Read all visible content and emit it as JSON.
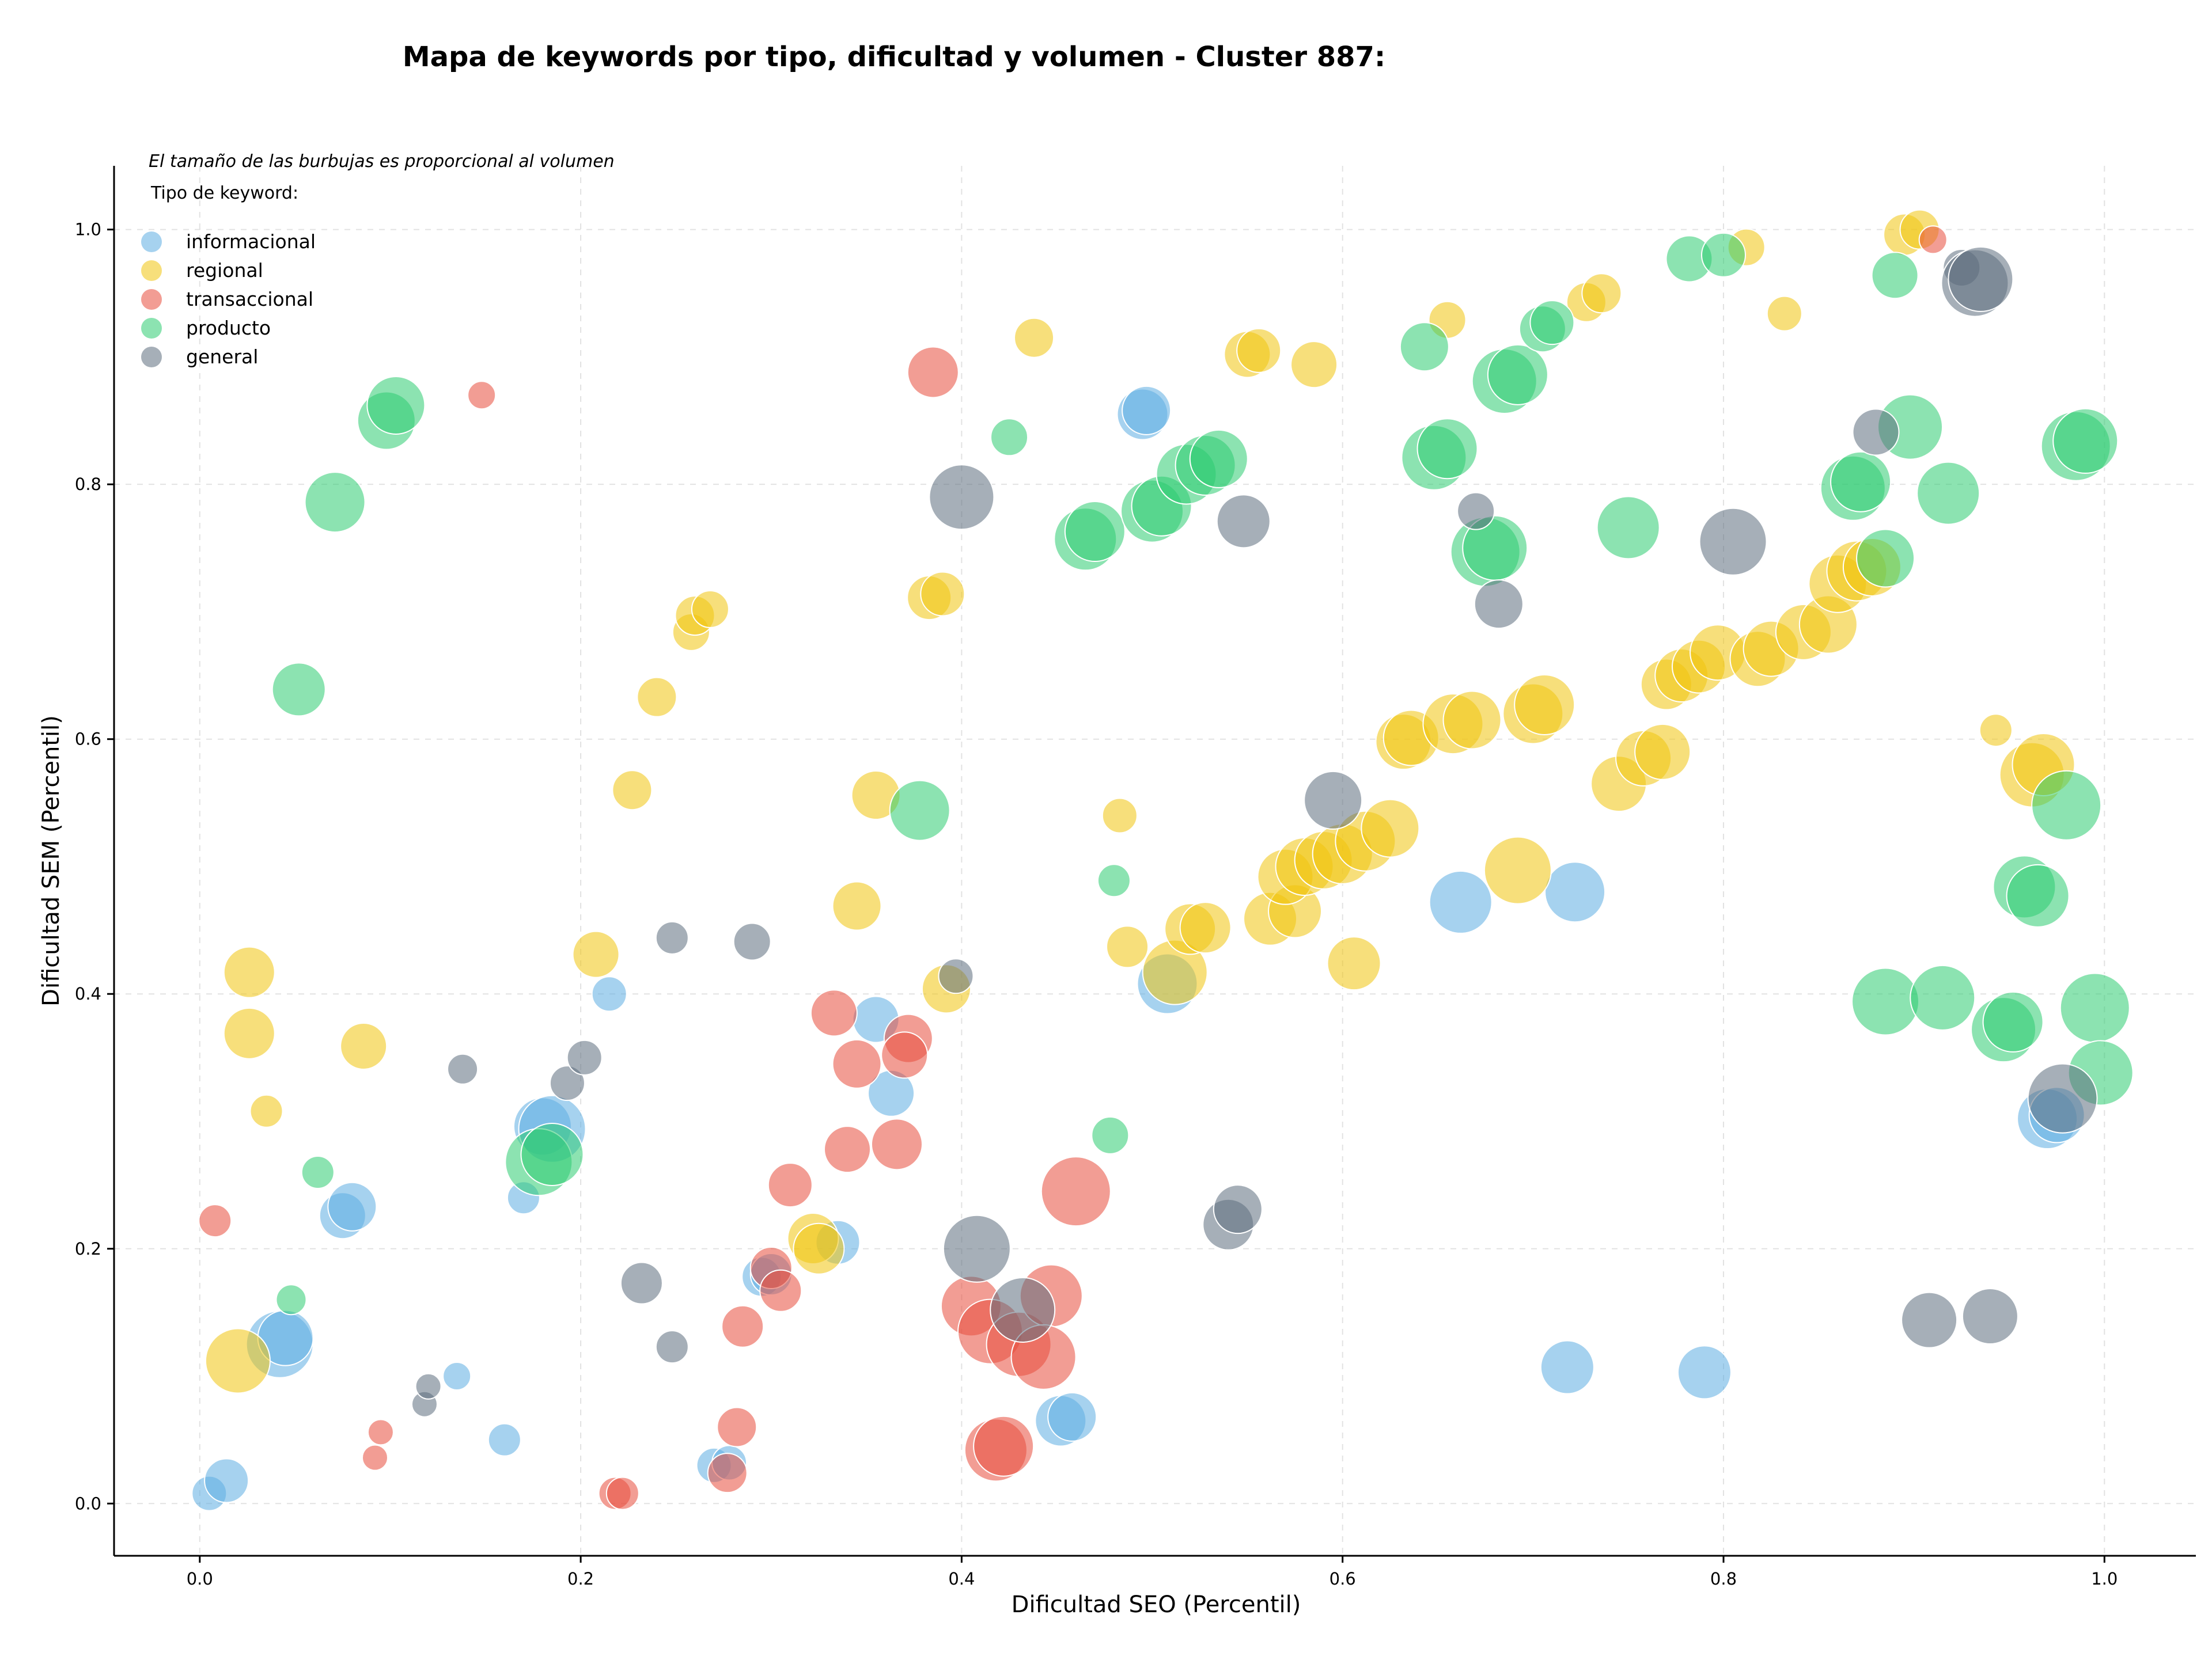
{
  "chart_data": {
    "type": "scatter",
    "title": "Mapa de keywords por tipo, dificultad y volumen - Cluster 887:",
    "xlabel": "Dificultad SEO (Percentil)",
    "ylabel": "Dificultad SEM (Percentil)",
    "note": "El tamaño de las burbujas es proporcional al volumen",
    "legend_title": "Tipo de keyword:",
    "legend_position": "top-left",
    "grid": true,
    "xlim": [
      -0.045,
      1.048
    ],
    "ylim": [
      -0.041,
      1.05
    ],
    "x_ticks": [
      "0.0",
      "0.2",
      "0.4",
      "0.6",
      "0.8",
      "1.0"
    ],
    "y_ticks": [
      "0.0",
      "0.2",
      "0.4",
      "0.6",
      "0.8",
      "1.0"
    ],
    "series": [
      {
        "name": "informacional",
        "color": "#5DADE2",
        "points": [
          [
            0.005,
            0.008,
            30
          ],
          [
            0.014,
            0.018,
            38
          ],
          [
            0.042,
            0.125,
            58
          ],
          [
            0.045,
            0.13,
            48
          ],
          [
            0.075,
            0.226,
            40
          ],
          [
            0.08,
            0.233,
            42
          ],
          [
            0.17,
            0.24,
            28
          ],
          [
            0.18,
            0.296,
            50
          ],
          [
            0.185,
            0.294,
            58
          ],
          [
            0.215,
            0.4,
            30
          ],
          [
            0.16,
            0.05,
            28
          ],
          [
            0.135,
            0.1,
            24
          ],
          [
            0.27,
            0.03,
            30
          ],
          [
            0.278,
            0.032,
            30
          ],
          [
            0.295,
            0.178,
            34
          ],
          [
            0.3,
            0.18,
            36
          ],
          [
            0.335,
            0.205,
            38
          ],
          [
            0.355,
            0.38,
            40
          ],
          [
            0.363,
            0.322,
            40
          ],
          [
            0.452,
            0.065,
            44
          ],
          [
            0.458,
            0.068,
            42
          ],
          [
            0.495,
            0.855,
            44
          ],
          [
            0.497,
            0.858,
            42
          ],
          [
            0.508,
            0.408,
            52
          ],
          [
            0.662,
            0.472,
            54
          ],
          [
            0.722,
            0.48,
            52
          ],
          [
            0.718,
            0.107,
            46
          ],
          [
            0.79,
            0.103,
            46
          ],
          [
            0.97,
            0.302,
            52
          ],
          [
            0.975,
            0.305,
            48
          ]
        ]
      },
      {
        "name": "regional",
        "color": "#F1C40F",
        "points": [
          [
            0.02,
            0.112,
            56
          ],
          [
            0.026,
            0.417,
            44
          ],
          [
            0.026,
            0.369,
            44
          ],
          [
            0.035,
            0.308,
            28
          ],
          [
            0.086,
            0.359,
            40
          ],
          [
            0.208,
            0.431,
            40
          ],
          [
            0.227,
            0.56,
            34
          ],
          [
            0.24,
            0.633,
            34
          ],
          [
            0.258,
            0.684,
            32
          ],
          [
            0.26,
            0.697,
            34
          ],
          [
            0.268,
            0.702,
            32
          ],
          [
            0.322,
            0.208,
            44
          ],
          [
            0.325,
            0.2,
            44
          ],
          [
            0.345,
            0.469,
            42
          ],
          [
            0.355,
            0.556,
            42
          ],
          [
            0.383,
            0.711,
            38
          ],
          [
            0.39,
            0.714,
            38
          ],
          [
            0.392,
            0.404,
            42
          ],
          [
            0.438,
            0.915,
            34
          ],
          [
            0.483,
            0.54,
            30
          ],
          [
            0.487,
            0.437,
            36
          ],
          [
            0.512,
            0.417,
            56
          ],
          [
            0.52,
            0.451,
            44
          ],
          [
            0.528,
            0.452,
            44
          ],
          [
            0.55,
            0.902,
            40
          ],
          [
            0.556,
            0.905,
            38
          ],
          [
            0.585,
            0.894,
            40
          ],
          [
            0.562,
            0.459,
            46
          ],
          [
            0.575,
            0.465,
            46
          ],
          [
            0.57,
            0.492,
            48
          ],
          [
            0.58,
            0.5,
            50
          ],
          [
            0.59,
            0.505,
            50
          ],
          [
            0.6,
            0.51,
            52
          ],
          [
            0.606,
            0.424,
            46
          ],
          [
            0.612,
            0.52,
            52
          ],
          [
            0.625,
            0.53,
            50
          ],
          [
            0.632,
            0.598,
            48
          ],
          [
            0.636,
            0.601,
            48
          ],
          [
            0.655,
            0.929,
            32
          ],
          [
            0.658,
            0.612,
            52
          ],
          [
            0.668,
            0.615,
            50
          ],
          [
            0.692,
            0.497,
            58
          ],
          [
            0.7,
            0.62,
            52
          ],
          [
            0.706,
            0.627,
            52
          ],
          [
            0.728,
            0.943,
            34
          ],
          [
            0.736,
            0.95,
            34
          ],
          [
            0.745,
            0.565,
            48
          ],
          [
            0.758,
            0.585,
            48
          ],
          [
            0.768,
            0.59,
            48
          ],
          [
            0.77,
            0.643,
            44
          ],
          [
            0.778,
            0.65,
            46
          ],
          [
            0.787,
            0.657,
            46
          ],
          [
            0.797,
            0.668,
            48
          ],
          [
            0.812,
            0.986,
            32
          ],
          [
            0.818,
            0.663,
            48
          ],
          [
            0.825,
            0.671,
            48
          ],
          [
            0.832,
            0.934,
            30
          ],
          [
            0.842,
            0.684,
            48
          ],
          [
            0.855,
            0.69,
            50
          ],
          [
            0.86,
            0.722,
            50
          ],
          [
            0.87,
            0.732,
            52
          ],
          [
            0.878,
            0.735,
            50
          ],
          [
            0.895,
            0.996,
            36
          ],
          [
            0.903,
            1.0,
            34
          ],
          [
            0.943,
            0.607,
            28
          ],
          [
            0.962,
            0.572,
            56
          ],
          [
            0.968,
            0.58,
            54
          ]
        ]
      },
      {
        "name": "transaccional",
        "color": "#E74C3C",
        "points": [
          [
            0.008,
            0.222,
            28
          ],
          [
            0.095,
            0.056,
            22
          ],
          [
            0.092,
            0.036,
            22
          ],
          [
            0.148,
            0.87,
            24
          ],
          [
            0.218,
            0.008,
            28
          ],
          [
            0.222,
            0.008,
            28
          ],
          [
            0.277,
            0.024,
            34
          ],
          [
            0.282,
            0.06,
            34
          ],
          [
            0.285,
            0.139,
            36
          ],
          [
            0.3,
            0.185,
            36
          ],
          [
            0.305,
            0.167,
            36
          ],
          [
            0.31,
            0.25,
            38
          ],
          [
            0.333,
            0.385,
            40
          ],
          [
            0.34,
            0.278,
            40
          ],
          [
            0.345,
            0.345,
            42
          ],
          [
            0.366,
            0.282,
            44
          ],
          [
            0.372,
            0.365,
            42
          ],
          [
            0.37,
            0.352,
            40
          ],
          [
            0.385,
            0.888,
            44
          ],
          [
            0.405,
            0.155,
            52
          ],
          [
            0.415,
            0.135,
            56
          ],
          [
            0.418,
            0.042,
            54
          ],
          [
            0.422,
            0.045,
            52
          ],
          [
            0.43,
            0.125,
            56
          ],
          [
            0.447,
            0.163,
            54
          ],
          [
            0.443,
            0.115,
            56
          ],
          [
            0.46,
            0.245,
            60
          ],
          [
            0.91,
            0.992,
            24
          ]
        ]
      },
      {
        "name": "producto",
        "color": "#2ECC71",
        "points": [
          [
            0.048,
            0.16,
            26
          ],
          [
            0.062,
            0.26,
            28
          ],
          [
            0.052,
            0.639,
            46
          ],
          [
            0.071,
            0.786,
            52
          ],
          [
            0.098,
            0.85,
            50
          ],
          [
            0.103,
            0.862,
            50
          ],
          [
            0.178,
            0.268,
            58
          ],
          [
            0.185,
            0.274,
            54
          ],
          [
            0.378,
            0.544,
            52
          ],
          [
            0.425,
            0.837,
            32
          ],
          [
            0.478,
            0.289,
            32
          ],
          [
            0.48,
            0.489,
            28
          ],
          [
            0.465,
            0.757,
            54
          ],
          [
            0.47,
            0.763,
            52
          ],
          [
            0.5,
            0.779,
            54
          ],
          [
            0.505,
            0.783,
            52
          ],
          [
            0.518,
            0.808,
            52
          ],
          [
            0.528,
            0.815,
            52
          ],
          [
            0.535,
            0.82,
            50
          ],
          [
            0.643,
            0.908,
            42
          ],
          [
            0.648,
            0.821,
            56
          ],
          [
            0.655,
            0.828,
            52
          ],
          [
            0.675,
            0.747,
            60
          ],
          [
            0.68,
            0.75,
            56
          ],
          [
            0.685,
            0.881,
            56
          ],
          [
            0.692,
            0.886,
            52
          ],
          [
            0.705,
            0.922,
            40
          ],
          [
            0.71,
            0.927,
            38
          ],
          [
            0.75,
            0.766,
            54
          ],
          [
            0.782,
            0.977,
            40
          ],
          [
            0.8,
            0.98,
            38
          ],
          [
            0.868,
            0.797,
            56
          ],
          [
            0.872,
            0.802,
            52
          ],
          [
            0.89,
            0.964,
            40
          ],
          [
            0.885,
            0.742,
            50
          ],
          [
            0.898,
            0.845,
            56
          ],
          [
            0.918,
            0.793,
            54
          ],
          [
            0.885,
            0.394,
            58
          ],
          [
            0.915,
            0.397,
            56
          ],
          [
            0.947,
            0.372,
            56
          ],
          [
            0.952,
            0.378,
            52
          ],
          [
            0.958,
            0.484,
            54
          ],
          [
            0.965,
            0.477,
            54
          ],
          [
            0.985,
            0.83,
            60
          ],
          [
            0.99,
            0.834,
            56
          ],
          [
            0.98,
            0.548,
            60
          ],
          [
            0.995,
            0.389,
            60
          ],
          [
            0.998,
            0.338,
            56
          ]
        ]
      },
      {
        "name": "general",
        "color": "#5D6D7E",
        "points": [
          [
            0.118,
            0.078,
            22
          ],
          [
            0.12,
            0.092,
            22
          ],
          [
            0.138,
            0.341,
            26
          ],
          [
            0.193,
            0.33,
            30
          ],
          [
            0.202,
            0.35,
            30
          ],
          [
            0.232,
            0.173,
            36
          ],
          [
            0.248,
            0.444,
            28
          ],
          [
            0.248,
            0.123,
            28
          ],
          [
            0.29,
            0.441,
            32
          ],
          [
            0.397,
            0.414,
            30
          ],
          [
            0.4,
            0.79,
            56
          ],
          [
            0.408,
            0.2,
            58
          ],
          [
            0.432,
            0.152,
            56
          ],
          [
            0.54,
            0.219,
            44
          ],
          [
            0.545,
            0.231,
            42
          ],
          [
            0.548,
            0.771,
            46
          ],
          [
            0.595,
            0.552,
            50
          ],
          [
            0.67,
            0.779,
            32
          ],
          [
            0.682,
            0.706,
            42
          ],
          [
            0.805,
            0.755,
            58
          ],
          [
            0.88,
            0.841,
            40
          ],
          [
            0.908,
            0.144,
            48
          ],
          [
            0.94,
            0.147,
            48
          ],
          [
            0.925,
            0.97,
            32
          ],
          [
            0.932,
            0.958,
            58
          ],
          [
            0.935,
            0.961,
            56
          ],
          [
            0.978,
            0.318,
            60
          ]
        ]
      }
    ]
  }
}
